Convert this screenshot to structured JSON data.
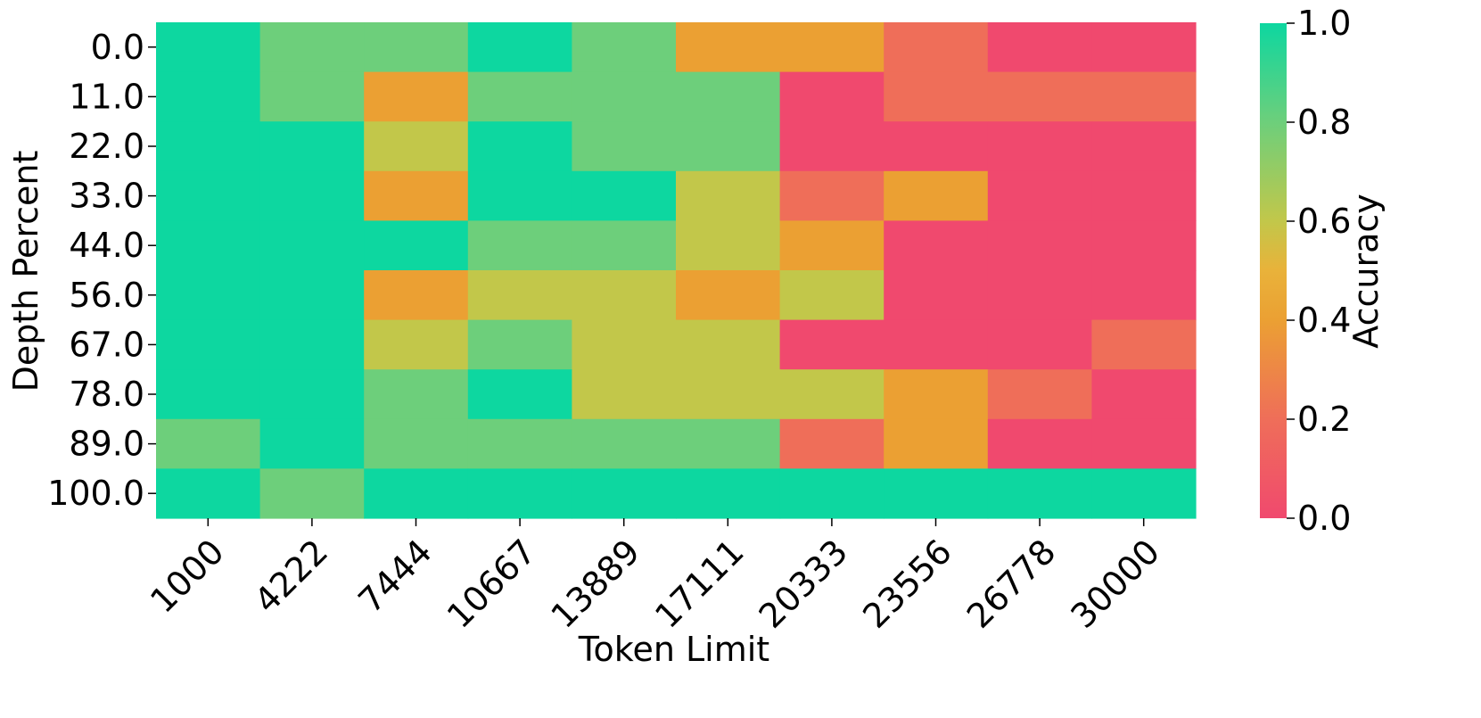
{
  "chart_data": {
    "type": "heatmap",
    "title": "",
    "xlabel": "Token Limit",
    "ylabel": "Depth Percent",
    "x_categories": [
      "1000",
      "4222",
      "7444",
      "10667",
      "13889",
      "17111",
      "20333",
      "23556",
      "26778",
      "30000"
    ],
    "y_categories": [
      "0.0",
      "11.0",
      "22.0",
      "33.0",
      "44.0",
      "56.0",
      "67.0",
      "78.0",
      "89.0",
      "100.0"
    ],
    "values": [
      [
        1.0,
        0.8,
        0.8,
        1.0,
        0.8,
        0.4,
        0.4,
        0.2,
        0.0,
        0.0
      ],
      [
        1.0,
        0.8,
        0.4,
        0.8,
        0.8,
        0.8,
        0.0,
        0.2,
        0.2,
        0.2
      ],
      [
        1.0,
        1.0,
        0.6,
        1.0,
        0.8,
        0.8,
        0.0,
        0.0,
        0.0,
        0.0
      ],
      [
        1.0,
        1.0,
        0.4,
        1.0,
        1.0,
        0.6,
        0.2,
        0.4,
        0.0,
        0.0
      ],
      [
        1.0,
        1.0,
        1.0,
        0.8,
        0.8,
        0.6,
        0.4,
        0.0,
        0.0,
        0.0
      ],
      [
        1.0,
        1.0,
        0.4,
        0.6,
        0.6,
        0.4,
        0.6,
        0.0,
        0.0,
        0.0
      ],
      [
        1.0,
        1.0,
        0.6,
        0.8,
        0.6,
        0.6,
        0.0,
        0.0,
        0.0,
        0.2
      ],
      [
        1.0,
        1.0,
        0.8,
        1.0,
        0.6,
        0.6,
        0.6,
        0.4,
        0.2,
        0.0
      ],
      [
        0.8,
        1.0,
        0.8,
        0.8,
        0.8,
        0.8,
        0.2,
        0.4,
        0.0,
        0.0
      ],
      [
        1.0,
        0.8,
        1.0,
        1.0,
        1.0,
        1.0,
        1.0,
        1.0,
        1.0,
        1.0
      ]
    ],
    "colorbar": {
      "label": "Accuracy",
      "range": [
        0.0,
        1.0
      ],
      "ticks": [
        "0.0",
        "0.2",
        "0.4",
        "0.6",
        "0.8",
        "1.0"
      ],
      "colors": [
        "#F0496E",
        "#EF6E59",
        "#EBA033",
        "#C2C74A",
        "#6DCF7B",
        "#0DD7A0"
      ]
    },
    "grid": false,
    "legend": "colorbar-right"
  }
}
